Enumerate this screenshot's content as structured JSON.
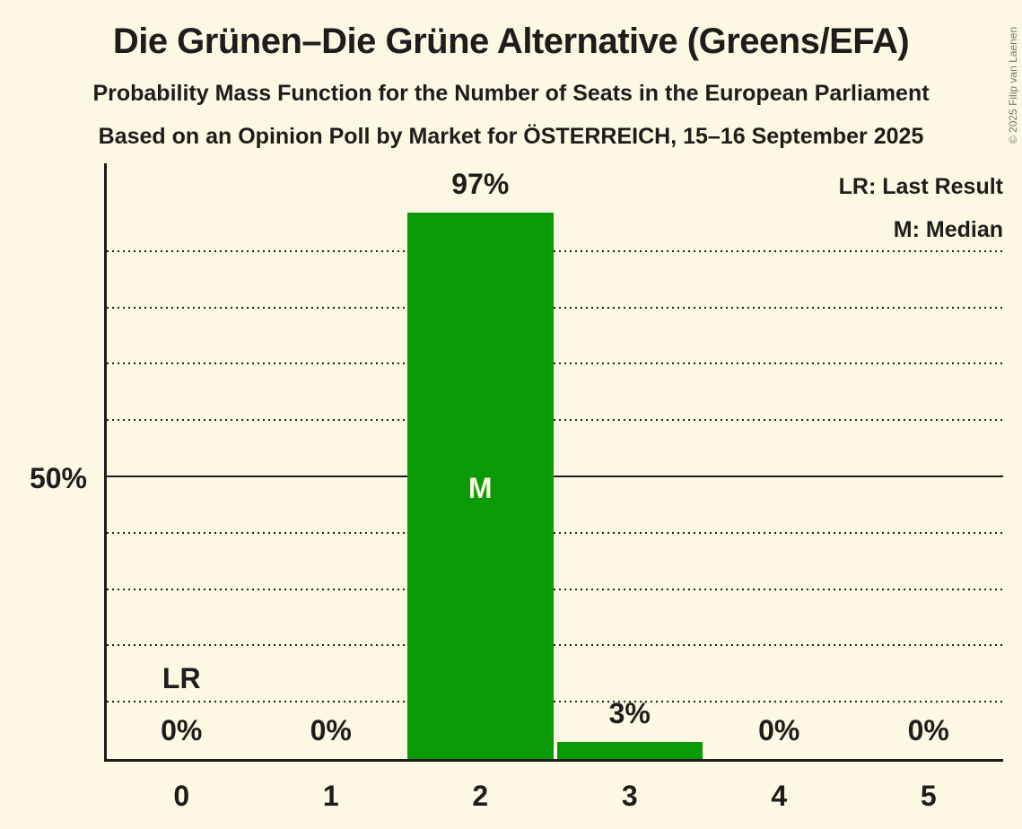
{
  "copyright": "© 2025 Filip van Laenen",
  "chart_data": {
    "type": "bar",
    "title": "Die Grünen–Die Grüne Alternative (Greens/EFA)",
    "subtitle1": "Probability Mass Function for the Number of Seats in the European Parliament",
    "subtitle2": "Based on an Opinion Poll by Market for ÖSTERREICH, 15–16 September 2025",
    "xlabel": "",
    "ylabel": "",
    "categories": [
      "0",
      "1",
      "2",
      "3",
      "4",
      "5"
    ],
    "values": [
      0,
      0,
      97,
      3,
      0,
      0
    ],
    "bar_labels": [
      "0%",
      "0%",
      "97%",
      "3%",
      "0%",
      "0%"
    ],
    "ytick_label": "50%",
    "ylim": [
      0,
      100
    ],
    "gridlines_percent": [
      10,
      20,
      30,
      40,
      50,
      60,
      70,
      80,
      90
    ],
    "grid": "dotted horizontal, solid at 50%",
    "legend_position": "top-right",
    "legend": [
      "LR: Last Result",
      "M: Median"
    ],
    "annotations": {
      "last_result_seat": "0",
      "last_result_label": "LR",
      "median_seat": "2",
      "median_label": "M"
    },
    "colors": {
      "bar": "#0A9A05",
      "background": "#FCF8E3",
      "text": "#1D1D1B",
      "median_text": "#FCF8E3"
    }
  }
}
